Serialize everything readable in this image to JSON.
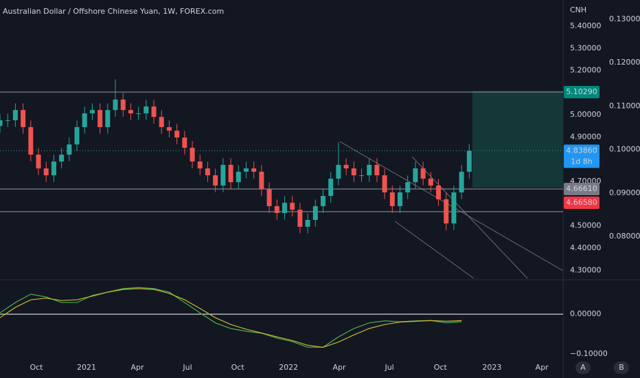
{
  "chart_data": [
    {
      "type": "candlestick",
      "title": "Australian Dollar / Offshore Chinese Yuan, 1W, FOREX.com",
      "axis_label": "CNH",
      "x": [
        0,
        2,
        4,
        6,
        8,
        10,
        12,
        14,
        16,
        18,
        20,
        22,
        24,
        26,
        28,
        30,
        32,
        34,
        36,
        38,
        40,
        42,
        44,
        46,
        48,
        50,
        52,
        54,
        56,
        58,
        60,
        62,
        64,
        66,
        68,
        70,
        72,
        74,
        76,
        78,
        80,
        82,
        84,
        86,
        88,
        90,
        92,
        94,
        96,
        98,
        100,
        102,
        104,
        106,
        108,
        110,
        112,
        114,
        116,
        118,
        120,
        122
      ],
      "open": [
        4.95,
        4.976,
        4.976,
        5.022,
        4.945,
        4.821,
        4.759,
        4.728,
        4.79,
        4.821,
        4.867,
        4.945,
        5.007,
        5.022,
        4.945,
        5.022,
        5.069,
        5.022,
        5.007,
        5.007,
        5.038,
        4.991,
        4.945,
        4.929,
        4.898,
        4.852,
        4.79,
        4.759,
        4.728,
        4.682,
        4.775,
        4.697,
        4.744,
        4.759,
        4.744,
        4.666,
        4.589,
        4.558,
        4.604,
        4.573,
        4.496,
        4.527,
        4.589,
        4.635,
        4.713,
        4.775,
        4.759,
        4.728,
        4.728,
        4.775,
        4.728,
        4.651,
        4.589,
        4.651,
        4.697,
        4.759,
        4.713,
        4.682,
        4.62,
        4.511,
        4.651,
        4.744
      ],
      "high": [
        5.006,
        5.006,
        5.052,
        5.052,
        4.975,
        4.851,
        4.789,
        4.82,
        4.851,
        4.897,
        4.975,
        5.037,
        5.052,
        5.052,
        5.052,
        5.16,
        5.099,
        5.052,
        5.037,
        5.068,
        5.068,
        5.021,
        4.975,
        4.959,
        4.928,
        4.882,
        4.82,
        4.789,
        4.758,
        4.805,
        4.805,
        4.774,
        4.789,
        4.789,
        4.774,
        4.696,
        4.619,
        4.634,
        4.634,
        4.603,
        4.557,
        4.619,
        4.665,
        4.743,
        4.877,
        4.805,
        4.789,
        4.758,
        4.805,
        4.805,
        4.758,
        4.681,
        4.681,
        4.727,
        4.789,
        4.789,
        4.743,
        4.712,
        4.65,
        4.681,
        4.774,
        4.8686
      ],
      "low": [
        4.92,
        4.946,
        4.946,
        4.915,
        4.791,
        4.729,
        4.698,
        4.698,
        4.76,
        4.791,
        4.837,
        4.915,
        4.977,
        4.915,
        4.915,
        4.992,
        4.992,
        4.977,
        4.977,
        4.977,
        4.961,
        4.915,
        4.899,
        4.868,
        4.822,
        4.76,
        4.729,
        4.698,
        4.652,
        4.652,
        4.667,
        4.667,
        4.714,
        4.714,
        4.636,
        4.559,
        4.528,
        4.528,
        4.543,
        4.466,
        4.466,
        4.497,
        4.559,
        4.605,
        4.683,
        4.729,
        4.698,
        4.698,
        4.698,
        4.698,
        4.621,
        4.559,
        4.559,
        4.621,
        4.667,
        4.683,
        4.652,
        4.59,
        4.481,
        4.481,
        4.621,
        4.714
      ],
      "close": [
        4.976,
        4.976,
        5.022,
        4.945,
        4.821,
        4.759,
        4.728,
        4.79,
        4.821,
        4.867,
        4.945,
        5.007,
        5.022,
        4.945,
        5.022,
        5.069,
        5.022,
        5.007,
        5.007,
        5.038,
        4.991,
        4.945,
        4.929,
        4.898,
        4.852,
        4.79,
        4.759,
        4.728,
        4.682,
        4.775,
        4.697,
        4.744,
        4.759,
        4.744,
        4.666,
        4.589,
        4.558,
        4.604,
        4.573,
        4.496,
        4.527,
        4.589,
        4.635,
        4.713,
        4.775,
        4.759,
        4.728,
        4.728,
        4.775,
        4.728,
        4.651,
        4.589,
        4.651,
        4.697,
        4.759,
        4.713,
        4.682,
        4.62,
        4.511,
        4.651,
        4.744,
        4.8386
      ],
      "up_color": "#26a69a",
      "down_color": "#ef5350",
      "xlim": [
        0,
        146.4
      ],
      "xticks": [
        {
          "value": 9.46,
          "label": "Oct"
        },
        {
          "value": 22.5,
          "label": "2021"
        },
        {
          "value": 35.7,
          "label": "Apr"
        },
        {
          "value": 48.75,
          "label": "Jul"
        },
        {
          "value": 61.8,
          "label": "Oct"
        },
        {
          "value": 75,
          "label": "2022"
        },
        {
          "value": 88.2,
          "label": "Apr"
        },
        {
          "value": 101.25,
          "label": "Jul"
        },
        {
          "value": 114.5,
          "label": "Oct"
        },
        {
          "value": 127.9,
          "label": "2023"
        },
        {
          "value": 140.9,
          "label": "Apr"
        }
      ],
      "ylim": [
        4.2638,
        5.5176
      ],
      "yticks": [
        {
          "value": 5.4,
          "label": "5.40000"
        },
        {
          "value": 5.3,
          "label": "5.30000"
        },
        {
          "value": 5.2,
          "label": "5.20000"
        },
        {
          "value": 5.0,
          "label": "5.00000"
        },
        {
          "value": 4.9,
          "label": "4.90000"
        },
        {
          "value": 4.7,
          "label": "4.70000"
        },
        {
          "value": 4.5,
          "label": "4.50000"
        },
        {
          "value": 4.4,
          "label": "4.40000"
        },
        {
          "value": 4.3,
          "label": "4.30000"
        }
      ],
      "y2lim": [
        0.07035,
        0.13443
      ],
      "y2ticks": [
        {
          "value": 0.13,
          "label": "0.13000"
        },
        {
          "value": 0.12,
          "label": "0.12000"
        },
        {
          "value": 0.11,
          "label": "0.11000"
        },
        {
          "value": 0.1,
          "label": "0.10000"
        },
        {
          "value": 0.09,
          "label": "0.09000"
        },
        {
          "value": 0.08,
          "label": "0.08000"
        }
      ],
      "levels": [
        5.1029,
        4.6661,
        4.564
      ],
      "price_labels": [
        {
          "value": 5.1029,
          "label": "5.10290",
          "color": "#00897b"
        },
        {
          "value": 4.8386,
          "label": "4.83860",
          "color": "#2196f3"
        },
        {
          "value": 4.6661,
          "label": "4.66610",
          "color": "#787b86"
        },
        {
          "value": 4.6658,
          "label": "4.66580",
          "color": "#f23645"
        }
      ],
      "countdown": "1d 8h"
    },
    {
      "type": "line",
      "x": [
        0,
        4,
        8,
        12,
        16,
        20,
        24,
        28,
        32,
        36,
        40,
        44,
        48,
        52,
        56,
        60,
        64,
        68,
        72,
        76,
        80,
        84,
        88,
        92,
        96,
        100,
        104,
        108,
        112,
        116,
        120
      ],
      "series": [
        {
          "color": "#4caf50",
          "values": [
            0.003,
            0.029,
            0.05,
            0.043,
            0.029,
            0.029,
            0.047,
            0.055,
            0.064,
            0.067,
            0.064,
            0.055,
            0.029,
            0.003,
            -0.022,
            -0.036,
            -0.043,
            -0.048,
            -0.06,
            -0.069,
            -0.083,
            -0.083,
            -0.057,
            -0.036,
            -0.022,
            -0.017,
            -0.019,
            -0.017,
            -0.016,
            -0.022,
            -0.019
          ]
        },
        {
          "color": "#c9b92f",
          "values": [
            -0.009,
            0.017,
            0.036,
            0.04,
            0.034,
            0.036,
            0.045,
            0.055,
            0.062,
            0.064,
            0.062,
            0.052,
            0.036,
            0.014,
            -0.009,
            -0.026,
            -0.038,
            -0.047,
            -0.057,
            -0.066,
            -0.078,
            -0.083,
            -0.07,
            -0.052,
            -0.036,
            -0.026,
            -0.02,
            -0.018,
            -0.016,
            -0.018,
            -0.016
          ]
        }
      ],
      "xlim": [
        0,
        146.4
      ],
      "ylim": [
        -0.117,
        0.0845
      ],
      "yticks": [
        {
          "value": 0,
          "label": "0.00000"
        },
        {
          "value": -0.1,
          "label": "−0.10000"
        }
      ]
    }
  ],
  "controls": {
    "buttons": [
      "A",
      "B"
    ]
  }
}
